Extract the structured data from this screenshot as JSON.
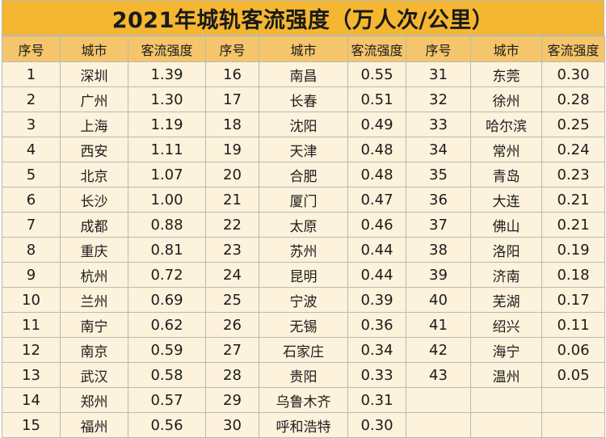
{
  "title": "2021年城轨客流强度（万人次/公里）",
  "headers": [
    "序号",
    "城市",
    "客流强度",
    "序号",
    "城市",
    "客流强度",
    "序号",
    "城市",
    "客流强度"
  ],
  "colors": {
    "title_bg": "#f5b731",
    "header_bg": "#f4c56b",
    "cell_bg": "#fdf2dc",
    "border": "#b9b9b9"
  },
  "rows": [
    {
      "cells": [
        "1",
        "深圳",
        "1.39",
        "16",
        "南昌",
        "0.55",
        "31",
        "东莞",
        "0.30"
      ]
    },
    {
      "cells": [
        "2",
        "广州",
        "1.30",
        "17",
        "长春",
        "0.51",
        "32",
        "徐州",
        "0.28"
      ]
    },
    {
      "cells": [
        "3",
        "上海",
        "1.19",
        "18",
        "沈阳",
        "0.49",
        "33",
        "哈尔滨",
        "0.25"
      ]
    },
    {
      "cells": [
        "4",
        "西安",
        "1.11",
        "19",
        "天津",
        "0.48",
        "34",
        "常州",
        "0.24"
      ]
    },
    {
      "cells": [
        "5",
        "北京",
        "1.07",
        "20",
        "合肥",
        "0.48",
        "35",
        "青岛",
        "0.23"
      ]
    },
    {
      "cells": [
        "6",
        "长沙",
        "1.00",
        "21",
        "厦门",
        "0.47",
        "36",
        "大连",
        "0.21"
      ]
    },
    {
      "cells": [
        "7",
        "成都",
        "0.88",
        "22",
        "太原",
        "0.46",
        "37",
        "佛山",
        "0.21"
      ]
    },
    {
      "cells": [
        "8",
        "重庆",
        "0.81",
        "23",
        "苏州",
        "0.44",
        "38",
        "洛阳",
        "0.19"
      ]
    },
    {
      "cells": [
        "9",
        "杭州",
        "0.72",
        "24",
        "昆明",
        "0.44",
        "39",
        "济南",
        "0.18"
      ]
    },
    {
      "cells": [
        "10",
        "兰州",
        "0.69",
        "25",
        "宁波",
        "0.39",
        "40",
        "芜湖",
        "0.17"
      ]
    },
    {
      "cells": [
        "11",
        "南宁",
        "0.62",
        "26",
        "无锡",
        "0.36",
        "41",
        "绍兴",
        "0.11"
      ]
    },
    {
      "cells": [
        "12",
        "南京",
        "0.59",
        "27",
        "石家庄",
        "0.34",
        "42",
        "海宁",
        "0.06"
      ]
    },
    {
      "cells": [
        "13",
        "武汉",
        "0.58",
        "28",
        "贵阳",
        "0.33",
        "43",
        "温州",
        "0.05"
      ]
    },
    {
      "cells": [
        "14",
        "郑州",
        "0.57",
        "29",
        "乌鲁木齐",
        "0.31",
        "",
        "",
        ""
      ]
    },
    {
      "cells": [
        "15",
        "福州",
        "0.56",
        "30",
        "呼和浩特",
        "0.30",
        "",
        "",
        ""
      ]
    }
  ]
}
